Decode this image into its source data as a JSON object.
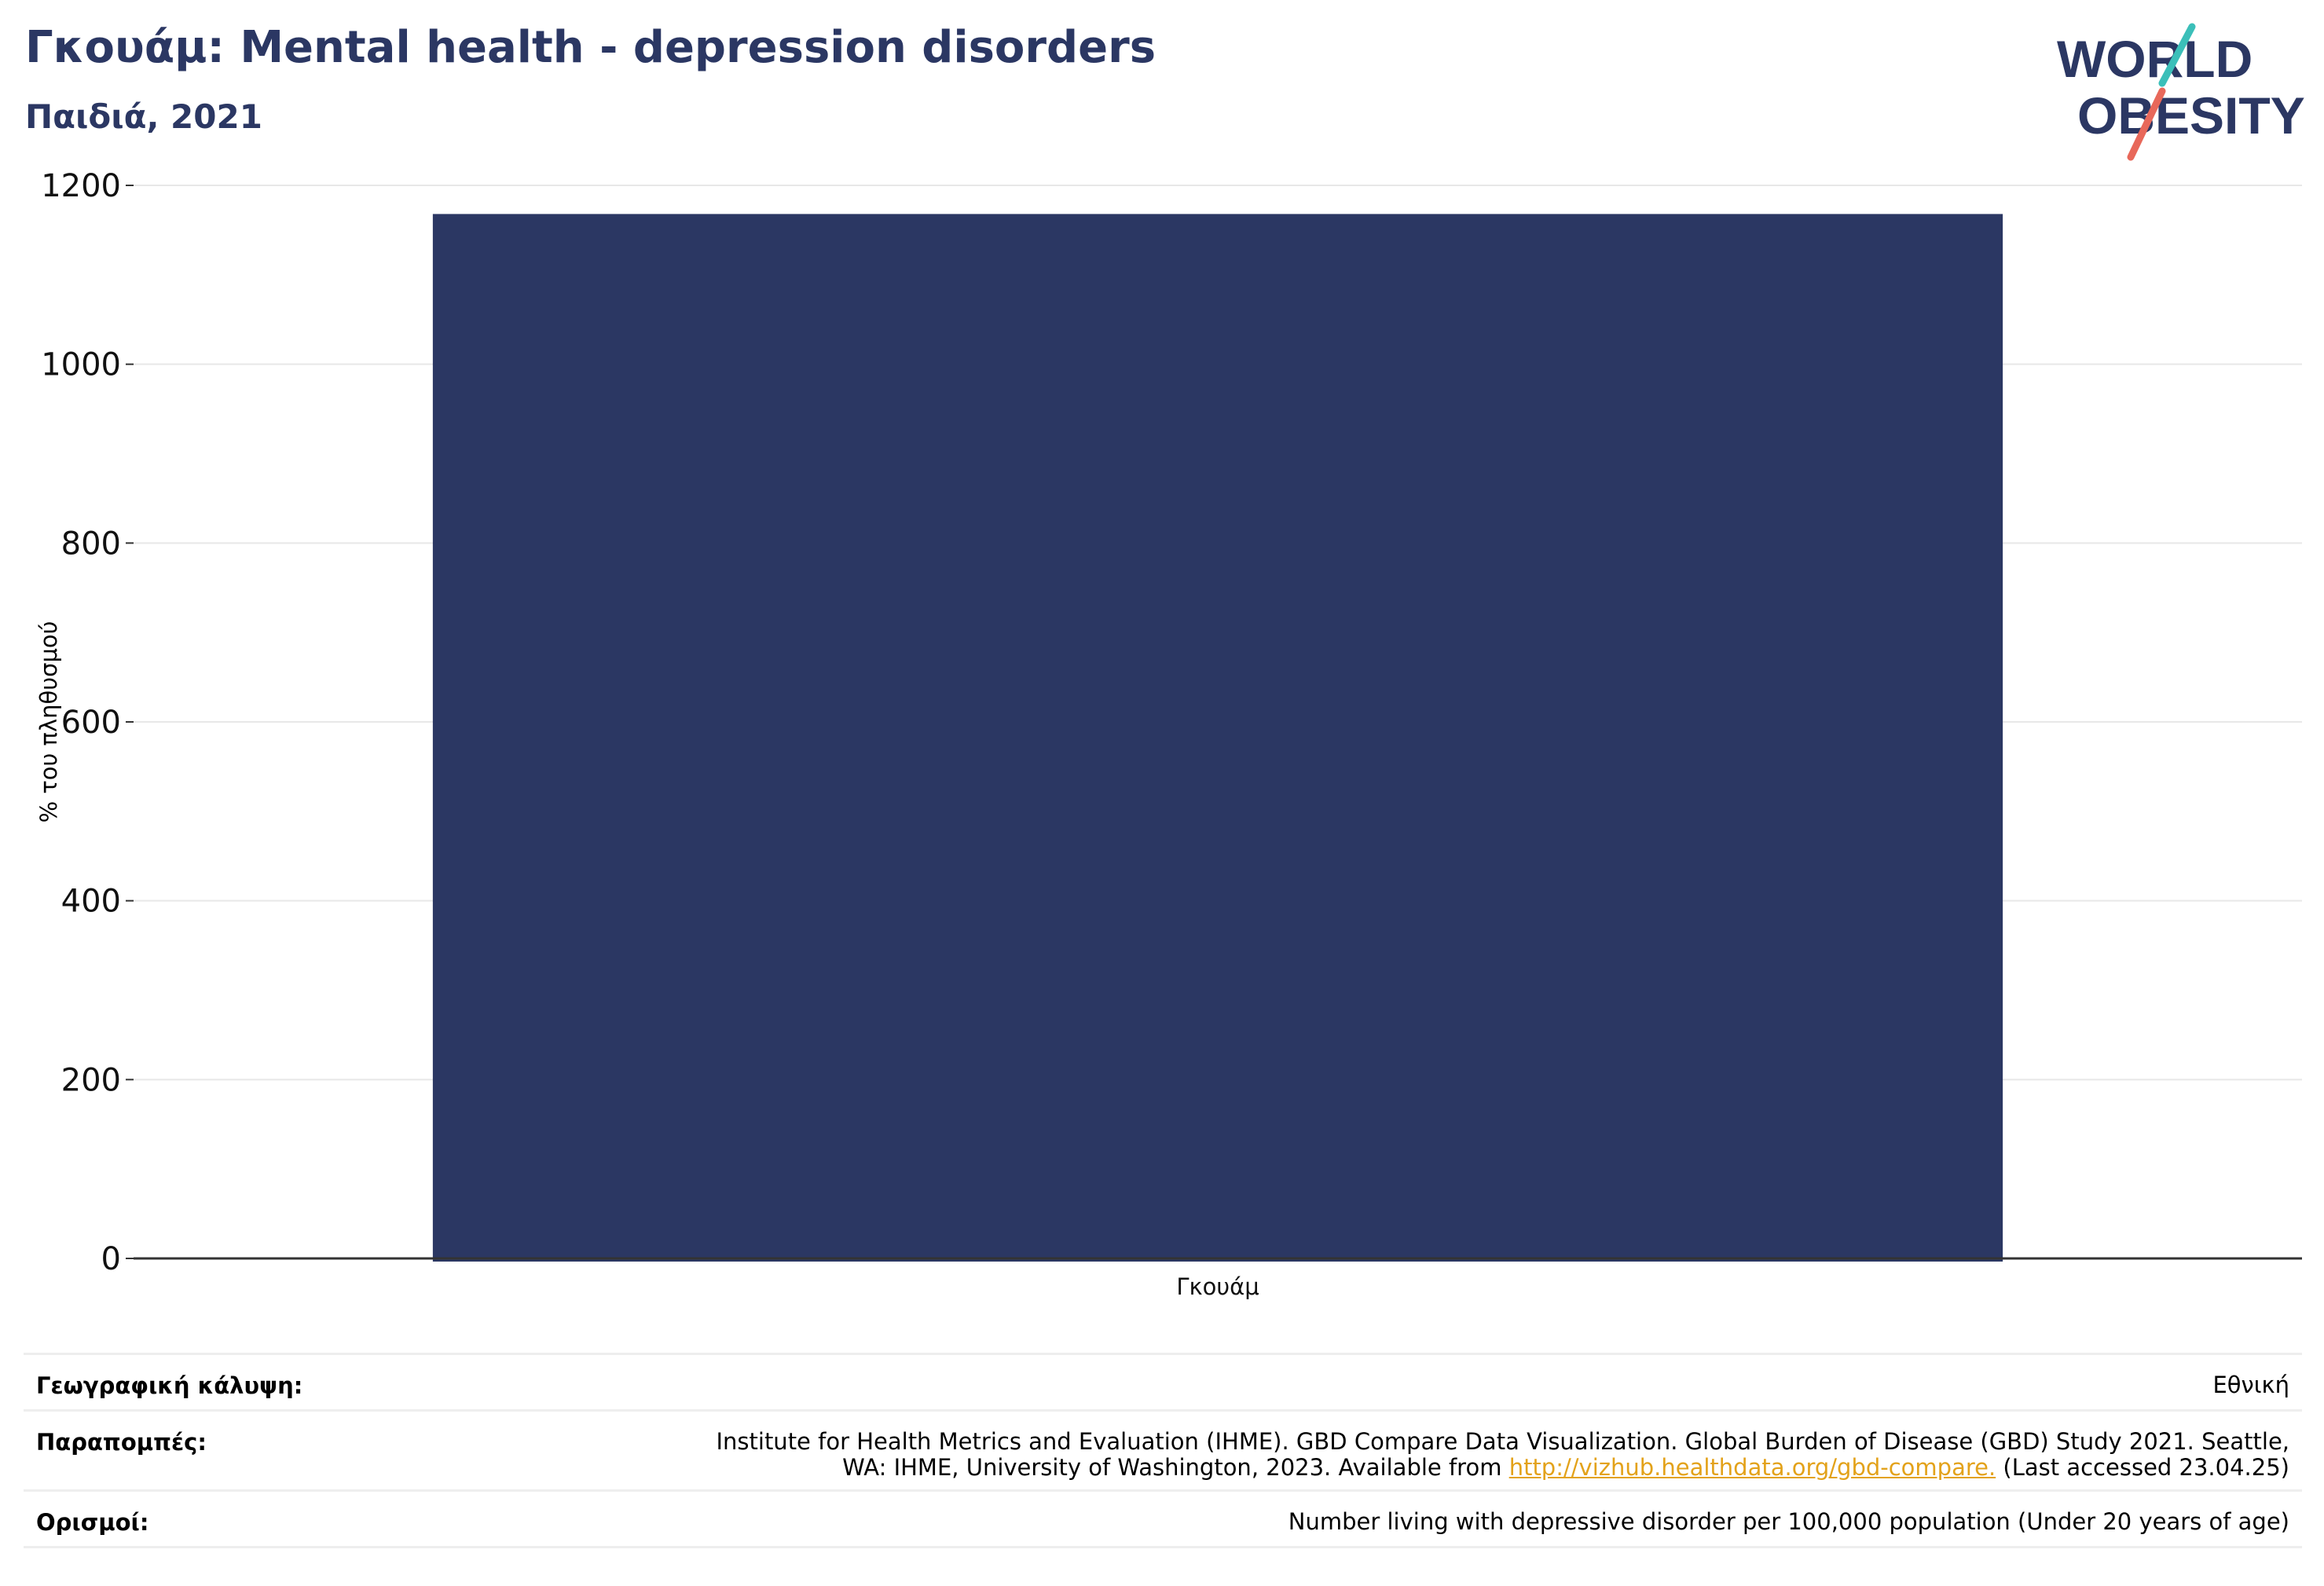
{
  "header": {
    "title": "Γκουάμ: Mental health - depression disorders",
    "subtitle": "Παιδιά, 2021"
  },
  "logo": {
    "line1": "WORLD",
    "line2": "OBESITY",
    "colors": {
      "text": "#2b3763",
      "teal": "#3bbfb9",
      "coral": "#e8685a"
    }
  },
  "chart_data": {
    "type": "bar",
    "categories": [
      "Γκουάμ"
    ],
    "values": [
      1168
    ],
    "ylabel": "% του πληθυσμού",
    "ylim": [
      0,
      1200
    ],
    "yticks": [
      0,
      200,
      400,
      600,
      800,
      1000,
      1200
    ],
    "grid": true,
    "bar_color": "#2b3763"
  },
  "footer": {
    "coverage": {
      "label": "Γεωγραφική κάλυψη:",
      "value": "Εθνική"
    },
    "references": {
      "label": "Παραπομπές:",
      "line1": "Institute for Health Metrics and Evaluation (IHME). GBD Compare Data Visualization. Global Burden of Disease (GBD) Study 2021. Seattle,",
      "line2_prefix": "WA: IHME, University of Washington, 2023. Available from ",
      "link": "http://vizhub.healthdata.org/gbd-compare.",
      "line2_suffix": " (Last accessed 23.04.25)"
    },
    "definitions": {
      "label": "Ορισμοί:",
      "value": "Number living with depressive disorder per 100,000 population (Under 20 years of age)"
    }
  }
}
